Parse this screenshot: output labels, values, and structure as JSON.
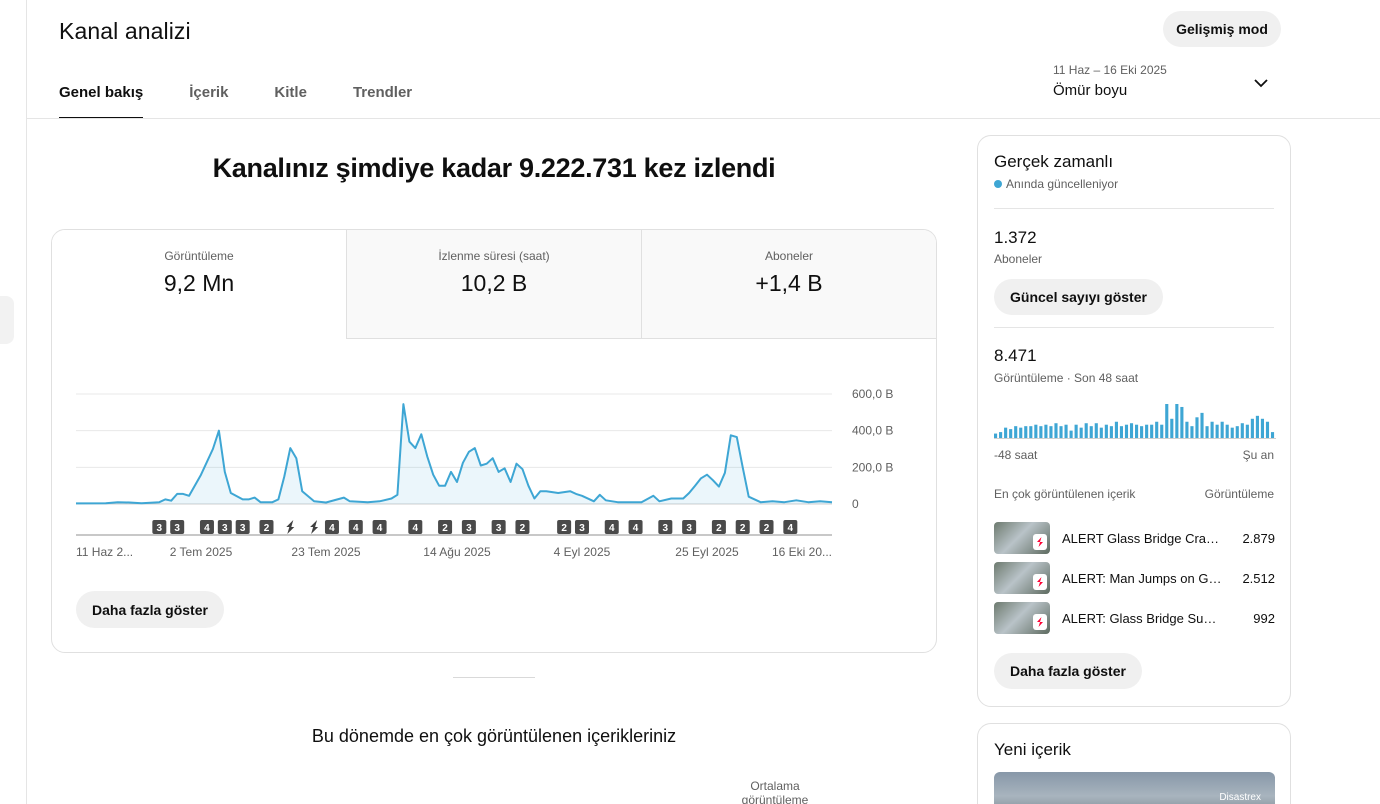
{
  "header": {
    "title": "Kanal analizi",
    "advanced_mode": "Gelişmiş mod",
    "tabs": [
      {
        "label": "Genel bakış",
        "active": true
      },
      {
        "label": "İçerik",
        "active": false
      },
      {
        "label": "Kitle",
        "active": false
      },
      {
        "label": "Trendler",
        "active": false
      }
    ],
    "date_range": {
      "range": "11 Haz – 16 Eki 2025",
      "period": "Ömür boyu"
    }
  },
  "overview": {
    "headline": "Kanalınız şimdiye kadar 9.222.731 kez izlendi",
    "metrics": [
      {
        "label": "Görüntüleme",
        "value": "9,2 Mn"
      },
      {
        "label": "İzlenme süresi (saat)",
        "value": "10,2 B"
      },
      {
        "label": "Aboneler",
        "value": "+1,4 B"
      }
    ],
    "more_button": "Daha fazla göster"
  },
  "chart_data": {
    "type": "area",
    "series_color": "#3ea6d4",
    "y_ticks": [
      "600,0 B",
      "400,0 B",
      "200,0 B",
      "0"
    ],
    "ylim": [
      0,
      600000
    ],
    "x_tick_labels": [
      "11 Haz 2...",
      "2 Tem 2025",
      "23 Tem 2025",
      "14 Ağu 2025",
      "4 Eyl 2025",
      "25 Eyl 2025",
      "16 Eki 20..."
    ],
    "x_range": [
      "2025-06-11",
      "2025-10-16"
    ],
    "x_ticks_dates": [
      "2025-06-11",
      "2025-07-02",
      "2025-07-23",
      "2025-08-14",
      "2025-09-04",
      "2025-09-25",
      "2025-10-16"
    ],
    "points": [
      [
        "2025-06-11",
        3000
      ],
      [
        "2025-06-16",
        4000
      ],
      [
        "2025-06-18",
        10000
      ],
      [
        "2025-06-20",
        8000
      ],
      [
        "2025-06-22",
        4000
      ],
      [
        "2025-06-25",
        10000
      ],
      [
        "2025-06-26",
        25000
      ],
      [
        "2025-06-27",
        18000
      ],
      [
        "2025-06-28",
        55000
      ],
      [
        "2025-06-29",
        55000
      ],
      [
        "2025-06-30",
        45000
      ],
      [
        "2025-07-02",
        160000
      ],
      [
        "2025-07-04",
        300000
      ],
      [
        "2025-07-05",
        400000
      ],
      [
        "2025-07-06",
        175000
      ],
      [
        "2025-07-07",
        60000
      ],
      [
        "2025-07-09",
        25000
      ],
      [
        "2025-07-10",
        25000
      ],
      [
        "2025-07-11",
        35000
      ],
      [
        "2025-07-12",
        10000
      ],
      [
        "2025-07-14",
        10000
      ],
      [
        "2025-07-15",
        25000
      ],
      [
        "2025-07-16",
        150000
      ],
      [
        "2025-07-17",
        305000
      ],
      [
        "2025-07-18",
        250000
      ],
      [
        "2025-07-19",
        70000
      ],
      [
        "2025-07-21",
        15000
      ],
      [
        "2025-07-23",
        8000
      ],
      [
        "2025-07-26",
        35000
      ],
      [
        "2025-07-27",
        15000
      ],
      [
        "2025-07-30",
        10000
      ],
      [
        "2025-08-01",
        15000
      ],
      [
        "2025-08-03",
        30000
      ],
      [
        "2025-08-04",
        50000
      ],
      [
        "2025-08-05",
        545000
      ],
      [
        "2025-08-06",
        340000
      ],
      [
        "2025-08-07",
        305000
      ],
      [
        "2025-08-08",
        380000
      ],
      [
        "2025-08-09",
        260000
      ],
      [
        "2025-08-10",
        160000
      ],
      [
        "2025-08-11",
        100000
      ],
      [
        "2025-08-12",
        100000
      ],
      [
        "2025-08-13",
        175000
      ],
      [
        "2025-08-14",
        120000
      ],
      [
        "2025-08-15",
        225000
      ],
      [
        "2025-08-16",
        285000
      ],
      [
        "2025-08-17",
        305000
      ],
      [
        "2025-08-18",
        210000
      ],
      [
        "2025-08-19",
        220000
      ],
      [
        "2025-08-20",
        250000
      ],
      [
        "2025-08-21",
        175000
      ],
      [
        "2025-08-22",
        195000
      ],
      [
        "2025-08-23",
        120000
      ],
      [
        "2025-08-24",
        220000
      ],
      [
        "2025-08-25",
        190000
      ],
      [
        "2025-08-26",
        100000
      ],
      [
        "2025-08-27",
        30000
      ],
      [
        "2025-08-28",
        70000
      ],
      [
        "2025-08-29",
        70000
      ],
      [
        "2025-08-31",
        60000
      ],
      [
        "2025-09-02",
        70000
      ],
      [
        "2025-09-03",
        55000
      ],
      [
        "2025-09-04",
        45000
      ],
      [
        "2025-09-06",
        15000
      ],
      [
        "2025-09-07",
        50000
      ],
      [
        "2025-09-08",
        20000
      ],
      [
        "2025-09-10",
        10000
      ],
      [
        "2025-09-12",
        10000
      ],
      [
        "2025-09-14",
        10000
      ],
      [
        "2025-09-16",
        45000
      ],
      [
        "2025-09-17",
        15000
      ],
      [
        "2025-09-19",
        30000
      ],
      [
        "2025-09-21",
        30000
      ],
      [
        "2025-09-22",
        60000
      ],
      [
        "2025-09-23",
        100000
      ],
      [
        "2025-09-24",
        140000
      ],
      [
        "2025-09-25",
        160000
      ],
      [
        "2025-09-26",
        130000
      ],
      [
        "2025-09-27",
        95000
      ],
      [
        "2025-09-28",
        170000
      ],
      [
        "2025-09-29",
        375000
      ],
      [
        "2025-09-30",
        365000
      ],
      [
        "2025-10-01",
        200000
      ],
      [
        "2025-10-02",
        40000
      ],
      [
        "2025-10-04",
        10000
      ],
      [
        "2025-10-06",
        15000
      ],
      [
        "2025-10-08",
        10000
      ],
      [
        "2025-10-10",
        20000
      ],
      [
        "2025-10-12",
        10000
      ],
      [
        "2025-10-14",
        15000
      ],
      [
        "2025-10-16",
        10000
      ]
    ],
    "markers": [
      {
        "date": "2025-06-25",
        "label": "3"
      },
      {
        "date": "2025-06-28",
        "label": "3"
      },
      {
        "date": "2025-07-03",
        "label": "4"
      },
      {
        "date": "2025-07-06",
        "label": "3"
      },
      {
        "date": "2025-07-09",
        "label": "3"
      },
      {
        "date": "2025-07-13",
        "label": "2"
      },
      {
        "date": "2025-07-17",
        "label": "shorts"
      },
      {
        "date": "2025-07-21",
        "label": "shorts"
      },
      {
        "date": "2025-07-24",
        "label": "4"
      },
      {
        "date": "2025-07-28",
        "label": "4"
      },
      {
        "date": "2025-08-01",
        "label": "4"
      },
      {
        "date": "2025-08-07",
        "label": "4"
      },
      {
        "date": "2025-08-12",
        "label": "2"
      },
      {
        "date": "2025-08-16",
        "label": "3"
      },
      {
        "date": "2025-08-21",
        "label": "3"
      },
      {
        "date": "2025-08-25",
        "label": "2"
      },
      {
        "date": "2025-09-01",
        "label": "2"
      },
      {
        "date": "2025-09-04",
        "label": "3"
      },
      {
        "date": "2025-09-09",
        "label": "4"
      },
      {
        "date": "2025-09-13",
        "label": "4"
      },
      {
        "date": "2025-09-18",
        "label": "3"
      },
      {
        "date": "2025-09-22",
        "label": "3"
      },
      {
        "date": "2025-09-27",
        "label": "2"
      },
      {
        "date": "2025-10-01",
        "label": "2"
      },
      {
        "date": "2025-10-05",
        "label": "2"
      },
      {
        "date": "2025-10-09",
        "label": "4"
      }
    ]
  },
  "top_content_section": {
    "title": "Bu dönemde en çok görüntülenen içerikleriniz",
    "avg_col": "Ortalama görüntüleme"
  },
  "realtime": {
    "title": "Gerçek zamanlı",
    "live": "Anında güncelleniyor",
    "subs_value": "1.372",
    "subs_label": "Aboneler",
    "show_count": "Güncel sayıyı göster",
    "views_value": "8.471",
    "views_label": "Görüntüleme · Son 48 saat",
    "bars": [
      3,
      4,
      7,
      6,
      8,
      7,
      8,
      8,
      9,
      8,
      9,
      8,
      10,
      8,
      9,
      5,
      9,
      7,
      10,
      8,
      10,
      7,
      9,
      8,
      11,
      8,
      9,
      10,
      9,
      8,
      9,
      9,
      11,
      9,
      23,
      13,
      23,
      21,
      11,
      8,
      14,
      17,
      8,
      11,
      9,
      11,
      9,
      7,
      8,
      10,
      9,
      13,
      15,
      13,
      11,
      4
    ],
    "axis_left": "-48 saat",
    "axis_right": "Şu an",
    "list_header": "En çok görüntülenen içerik",
    "list_views_header": "Görüntüleme",
    "items": [
      {
        "title": "ALERT Glass Bridge Cracks...",
        "views": "2.879"
      },
      {
        "title": "ALERT: Man Jumps on Glass...",
        "views": "2.512"
      },
      {
        "title": "ALERT: Glass Bridge Sudden...",
        "views": "992"
      }
    ],
    "more_button": "Daha fazla göster"
  },
  "new_content": {
    "title": "Yeni içerik",
    "thumb_text": "Disastrex"
  }
}
